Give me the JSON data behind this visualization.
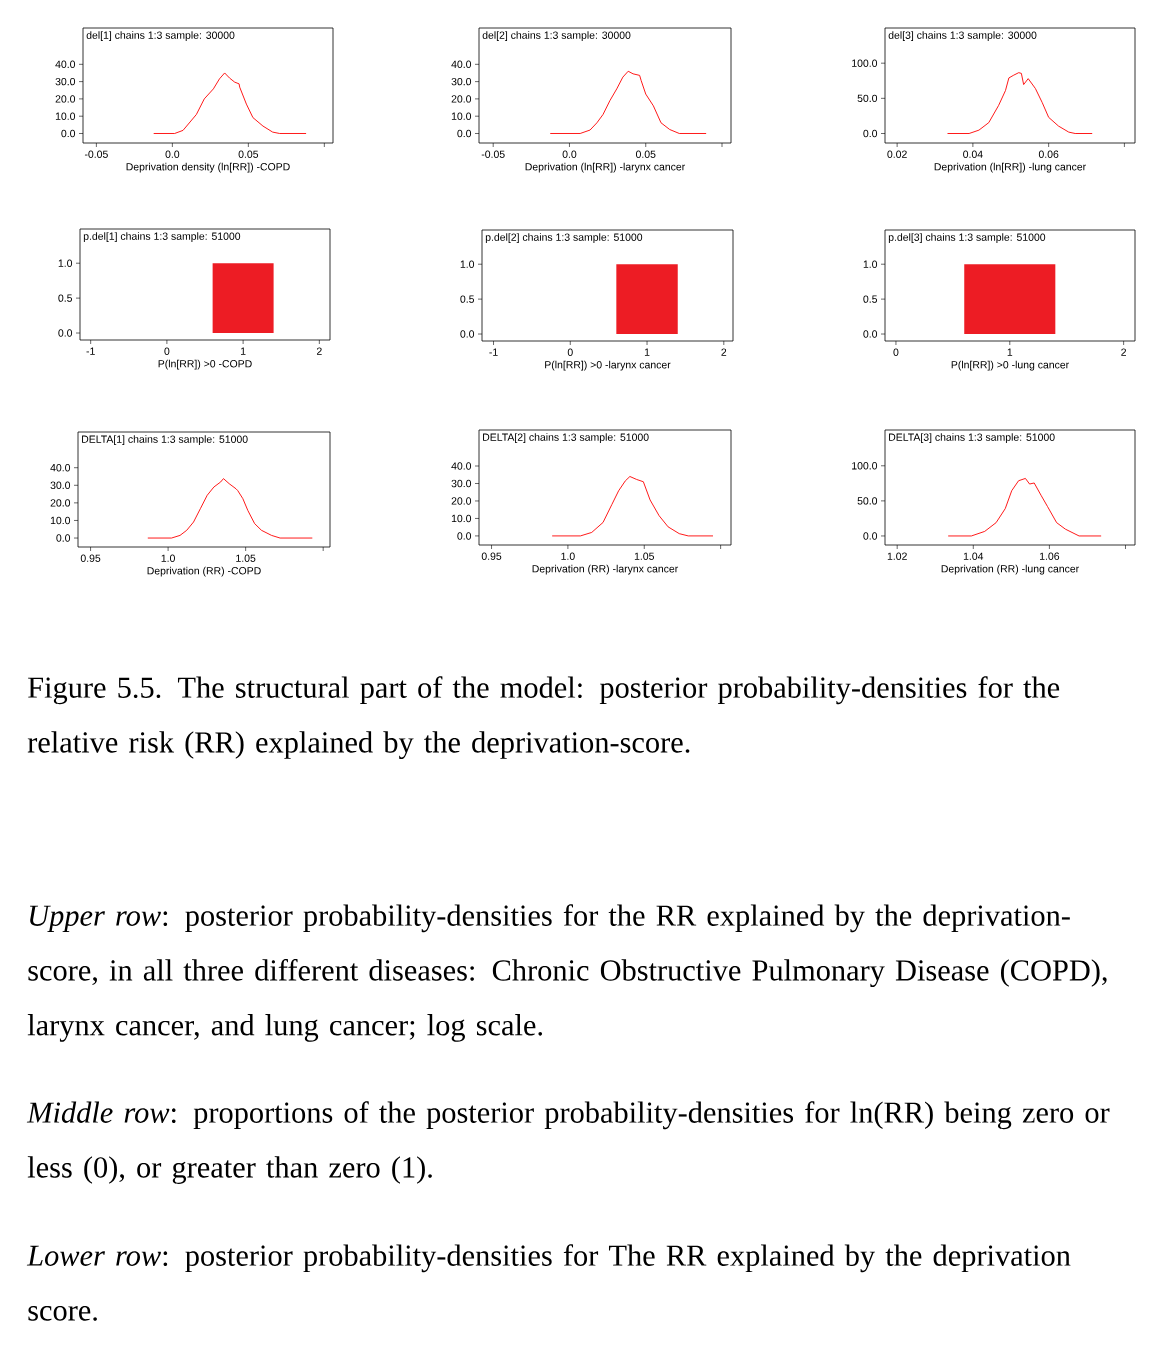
{
  "chart_data": [
    {
      "type": "line",
      "title": "del[1] chains 1:3 sample: 30000",
      "xlabel": "Deprivation density (ln[RR]) -COPD",
      "color": "#ff0000",
      "xlim": [
        -0.0588,
        0.1057
      ],
      "xticks": [
        -0.05,
        {
          "value": 0,
          "label": "0.0"
        },
        0.05,
        {
          "value": 0.1,
          "label": null
        }
      ],
      "ylim": [
        -5.5,
        61
      ],
      "yticks": [
        {
          "value": 0,
          "label": "0.0"
        },
        {
          "value": 10,
          "label": "10.0"
        },
        {
          "value": 20,
          "label": "20.0"
        },
        {
          "value": 30,
          "label": "30.0"
        },
        {
          "value": 40,
          "label": "40.0"
        }
      ],
      "x": [
        -0.0123,
        0.0015,
        0.007,
        0.0158,
        0.021,
        0.027,
        0.031,
        0.0344,
        0.0377,
        0.041,
        0.0439,
        0.0443,
        0.0487,
        0.053,
        0.0596,
        0.066,
        0.0706,
        0.088
      ],
      "values": [
        0,
        0,
        1.8,
        11,
        20,
        25.8,
        31.6,
        35,
        32,
        29.7,
        28.7,
        26.8,
        17,
        9.2,
        4.3,
        0.8,
        0,
        0
      ]
    },
    {
      "type": "line",
      "title": "del[2] chains 1:3 sample: 30000",
      "xlabel": "Deprivation (ln[RR]) -larynx cancer",
      "color": "#ff0000",
      "xlim": [
        -0.0593,
        0.1059
      ],
      "xticks": [
        -0.05,
        {
          "value": 0,
          "label": "0.0"
        },
        0.05,
        {
          "value": 0.1,
          "label": null
        }
      ],
      "ylim": [
        -5.5,
        61
      ],
      "yticks": [
        {
          "value": 0,
          "label": "0.0"
        },
        {
          "value": 10,
          "label": "10.0"
        },
        {
          "value": 20,
          "label": "20.0"
        },
        {
          "value": 30,
          "label": "30.0"
        },
        {
          "value": 40,
          "label": "40.0"
        }
      ],
      "x": [
        -0.0126,
        0.007,
        0.0135,
        0.018,
        0.022,
        0.0265,
        0.031,
        0.035,
        0.0385,
        0.0417,
        0.046,
        0.047,
        0.05,
        0.055,
        0.06,
        0.0657,
        0.072,
        0.0896
      ],
      "values": [
        0,
        0,
        2,
        6.2,
        11,
        19,
        25.8,
        32.6,
        36,
        34.5,
        33.6,
        30.6,
        22.8,
        16,
        6.2,
        2.3,
        0,
        0
      ]
    },
    {
      "type": "line",
      "title": "del[3] chains 1:3 sample: 30000",
      "xlabel": "Deprivation (ln[RR]) -lung cancer",
      "color": "#ff0000",
      "xlim": [
        0.0168,
        0.0828
      ],
      "xticks": [
        0.02,
        0.04,
        0.06,
        {
          "value": 0.08,
          "label": null
        }
      ],
      "ylim": [
        -13.5,
        150
      ],
      "yticks": [
        {
          "value": 0,
          "label": "0.0"
        },
        {
          "value": 50,
          "label": "50.0"
        },
        {
          "value": 100,
          "label": "100.0"
        }
      ],
      "x": [
        0.0333,
        0.039,
        0.0416,
        0.0442,
        0.0468,
        0.0486,
        0.0495,
        0.0508,
        0.0521,
        0.0528,
        0.0534,
        0.0546,
        0.0565,
        0.0583,
        0.06,
        0.0626,
        0.0653,
        0.067,
        0.0715
      ],
      "values": [
        0,
        0,
        4.8,
        15.5,
        40,
        61,
        79,
        83,
        86.5,
        85.5,
        69.6,
        78,
        64,
        44,
        23,
        10.6,
        2,
        0,
        0
      ]
    },
    {
      "type": "bar",
      "title": "p.del[1] chains 1:3 sample: 51000",
      "xlabel": "P(ln[RR]) >0 -COPD",
      "color": "#ed1c24",
      "xlim": [
        -1.14,
        2.14
      ],
      "xticks": [
        -1,
        0,
        1,
        2
      ],
      "ylim": [
        -0.1,
        1.49
      ],
      "yticks": [
        {
          "value": 0,
          "label": "0.0"
        },
        {
          "value": 0.5,
          "label": "0.5"
        },
        {
          "value": 1,
          "label": "1.0"
        }
      ],
      "x": [
        1
      ],
      "values": [
        1.0
      ]
    },
    {
      "type": "bar",
      "title": "p.del[2] chains 1:3 sample: 51000",
      "xlabel": "P(ln[RR]) >0 -larynx cancer",
      "color": "#ed1c24",
      "xlim": [
        -1.15,
        2.12
      ],
      "xticks": [
        -1,
        0,
        1,
        2
      ],
      "ylim": [
        -0.1,
        1.49
      ],
      "yticks": [
        {
          "value": 0,
          "label": "0.0"
        },
        {
          "value": 0.5,
          "label": "0.5"
        },
        {
          "value": 1,
          "label": "1.0"
        }
      ],
      "x": [
        1
      ],
      "values": [
        1.0
      ]
    },
    {
      "type": "bar",
      "title": "p.del[3] chains 1:3 sample: 51000",
      "xlabel": "P(ln[RR]) >0 -lung cancer",
      "color": "#ed1c24",
      "xlim": [
        -0.096,
        2.1
      ],
      "xticks": [
        0,
        1,
        2
      ],
      "ylim": [
        -0.1,
        1.49
      ],
      "yticks": [
        {
          "value": 0,
          "label": "0.0"
        },
        {
          "value": 0.5,
          "label": "0.5"
        },
        {
          "value": 1,
          "label": "1.0"
        }
      ],
      "x": [
        1
      ],
      "values": [
        1.0
      ]
    },
    {
      "type": "line",
      "title": "DELTA[1] chains 1:3 sample: 51000",
      "xlabel": "Deprivation (RR) -COPD",
      "color": "#ff0000",
      "xlim": [
        0.9419,
        1.1044
      ],
      "xticks": [
        0.95,
        {
          "value": 1.0,
          "label": "1.0"
        },
        1.05,
        {
          "value": 1.1,
          "label": null
        }
      ],
      "ylim": [
        -5.1,
        60.3
      ],
      "yticks": [
        {
          "value": 0,
          "label": "0.0"
        },
        {
          "value": 10,
          "label": "10.0"
        },
        {
          "value": 20,
          "label": "20.0"
        },
        {
          "value": 30,
          "label": "30.0"
        },
        {
          "value": 40,
          "label": "40.0"
        }
      ],
      "x": [
        0.9869,
        1.0022,
        1.0077,
        1.012,
        1.0164,
        1.0208,
        1.0252,
        1.0295,
        1.0339,
        1.0357,
        1.0394,
        1.0438,
        1.0449,
        1.0482,
        1.0514,
        1.0558,
        1.0602,
        1.0667,
        1.0722,
        1.093
      ],
      "values": [
        0,
        0,
        1.5,
        4.4,
        9.1,
        16.7,
        24.3,
        29,
        31.9,
        33.8,
        30.9,
        28,
        27,
        22.4,
        15.7,
        8.2,
        4.4,
        1.5,
        0,
        0
      ]
    },
    {
      "type": "line",
      "title": "DELTA[2] chains 1:3 sample: 51000",
      "xlabel": "Deprivation (RR) -larynx cancer",
      "color": "#ff0000",
      "xlim": [
        0.9418,
        1.1068
      ],
      "xticks": [
        0.95,
        {
          "value": 1.0,
          "label": "1.0"
        },
        1.05,
        {
          "value": 1.1,
          "label": null
        }
      ],
      "ylim": [
        -5.2,
        60.6
      ],
      "yticks": [
        {
          "value": 0,
          "label": "0.0"
        },
        {
          "value": 10,
          "label": "10.0"
        },
        {
          "value": 20,
          "label": "20.0"
        },
        {
          "value": 30,
          "label": "30.0"
        },
        {
          "value": 40,
          "label": "40.0"
        }
      ],
      "x": [
        0.9897,
        1.0082,
        1.0156,
        1.023,
        1.0288,
        1.0332,
        1.0376,
        1.0406,
        1.045,
        1.0494,
        1.0538,
        1.0597,
        1.0656,
        1.0729,
        1.0788,
        1.095
      ],
      "values": [
        0,
        0,
        2,
        7.7,
        18,
        25.8,
        31.5,
        34,
        32.3,
        31,
        20.6,
        11.6,
        5.2,
        1.3,
        0,
        0
      ]
    },
    {
      "type": "line",
      "title": "DELTA[3] chains 1:3 sample: 51000",
      "xlabel": "Deprivation (RR) -lung cancer",
      "color": "#ff0000",
      "xlim": [
        1.0168,
        1.0825
      ],
      "xticks": [
        1.02,
        1.04,
        1.06,
        {
          "value": 1.08,
          "label": null
        }
      ],
      "ylim": [
        -12.9,
        151
      ],
      "yticks": [
        {
          "value": 0,
          "label": "0.0"
        },
        {
          "value": 50,
          "label": "50.0"
        },
        {
          "value": 100,
          "label": "100.0"
        }
      ],
      "x": [
        1.0334,
        1.0395,
        1.043,
        1.046,
        1.0484,
        1.0501,
        1.0519,
        1.0537,
        1.0548,
        1.056,
        1.0578,
        1.0595,
        1.0619,
        1.0642,
        1.0678,
        1.0736
      ],
      "values": [
        0,
        0,
        6.5,
        19,
        39,
        64.5,
        78.7,
        82,
        74,
        75.5,
        58,
        42,
        19,
        9.7,
        0,
        0
      ]
    },
    {
      "type": "other",
      "annotations": [
        "Figure 5.5. The structural part of the model: posterior probability-densities for the relative risk (RR) explained by the deprivation-score.",
        "*Upper row*: posterior probability-densities for the RR explained by the deprivation-score, in all three different diseases: Chronic Obstructive Pulmonary Disease (COPD), larynx cancer, and lung cancer; log scale.",
        "*Middle row*: proportions of the posterior probability-densities for ln(RR) being zero or less (0), or greater than zero (1).",
        "*Lower row*: posterior probability-densities for The RR explained by the deprivation score."
      ]
    }
  ]
}
